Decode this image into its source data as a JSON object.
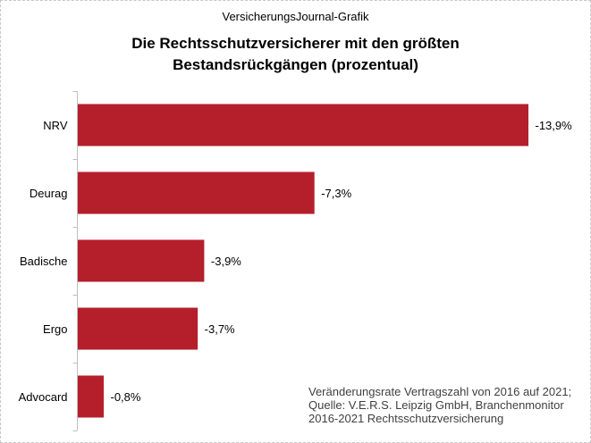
{
  "header": {
    "source_label": "VersicherungsJournal-Grafik",
    "title": "Die Rechtsschutzversicherer  mit den größten\nBestandsrückgängen  (prozentual)"
  },
  "note": "Veränderungsrate  Vertragszahl von 2016 auf 2021;\nQuelle: V.E.R.S. Leipzig GmbH, Branchenmonitor\n2016-2021  Rechtsschutzversicherung",
  "chart_data": {
    "type": "bar",
    "orientation": "horizontal",
    "title": "Die Rechtsschutzversicherer  mit den größten Bestandsrückgängen  (prozentual)",
    "categories": [
      "NRV",
      "Deurag",
      "Badische",
      "Ergo",
      "Advocard"
    ],
    "values": [
      -13.9,
      -7.3,
      -3.9,
      -3.7,
      -0.8
    ],
    "data_labels": [
      "-13,9%",
      "-7,3%",
      "-3,9%",
      "-3,7%",
      "-0,8%"
    ],
    "xlabel": "",
    "ylabel": "",
    "grid": false,
    "legend": "none",
    "bar_color": "#B41F2B",
    "axis_color": "#BFBFBF"
  }
}
